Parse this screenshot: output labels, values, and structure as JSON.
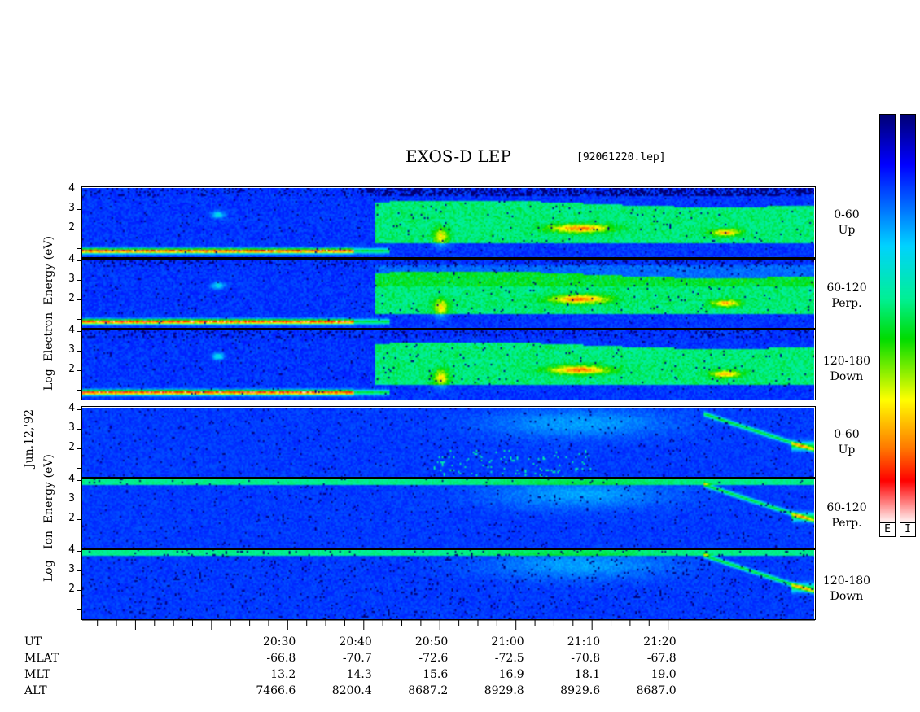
{
  "chart_data": {
    "type": "heatmap",
    "title": "EXOS-D LEP",
    "file_label": "[92061220.lep]",
    "date_label": "Jun.12,'92",
    "electron_ylabel": [
      "Log",
      "Electron",
      "Energy",
      "(eV)"
    ],
    "ion_ylabel": [
      "Log",
      "Ion",
      "Energy",
      "(eV)"
    ],
    "y_ticks": [
      "1",
      "2",
      "3",
      "4"
    ],
    "ylim": [
      1,
      4
    ],
    "panels": [
      {
        "species": "E",
        "pitch_range": "0-60",
        "direction": "Up"
      },
      {
        "species": "E",
        "pitch_range": "60-120",
        "direction": "Perp."
      },
      {
        "species": "E",
        "pitch_range": "120-180",
        "direction": "Down"
      },
      {
        "species": "I",
        "pitch_range": "0-60",
        "direction": "Up"
      },
      {
        "species": "I",
        "pitch_range": "60-120",
        "direction": "Perp."
      },
      {
        "species": "I",
        "pitch_range": "120-180",
        "direction": "Down"
      }
    ],
    "x_axis": {
      "row_labels": [
        "UT",
        "MLAT",
        "MLT",
        "ALT"
      ],
      "UT": [
        "20:30",
        "20:40",
        "20:50",
        "21:00",
        "21:10",
        "21:20"
      ],
      "MLAT": [
        "-66.8",
        "-70.7",
        "-72.6",
        "-72.5",
        "-70.8",
        "-67.8"
      ],
      "MLT": [
        "13.2",
        "14.3",
        "15.6",
        "16.9",
        "18.1",
        "19.0"
      ],
      "ALT": [
        "7466.6",
        "8200.4",
        "8687.2",
        "8929.8",
        "8929.6",
        "8687.0"
      ]
    },
    "colorbar": {
      "labels": [
        "E",
        "I"
      ],
      "colors": [
        "#ffffff",
        "#ff0000",
        "#ffff00",
        "#00dd00",
        "#00ffff",
        "#0000ff",
        "#000080"
      ]
    }
  }
}
